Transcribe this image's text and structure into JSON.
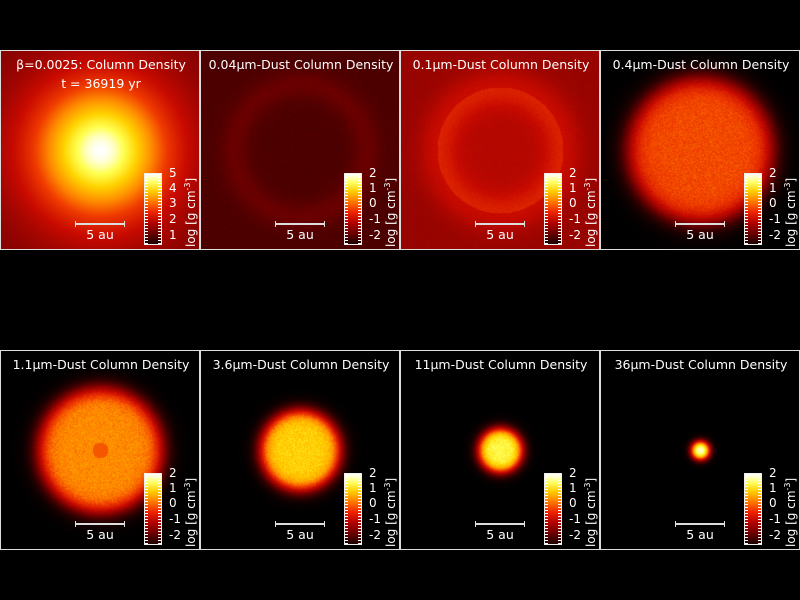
{
  "panels": [
    {
      "title": "β=0.0025: Column Density",
      "subtitle": "t = 36919 yr",
      "scale_label": "5 au",
      "ticks": [
        "5",
        "4",
        "3",
        "2",
        "1"
      ],
      "unit_prefix": "log [g cm",
      "unit_exp": "-3",
      "unit_suffix": "]"
    },
    {
      "title": "0.04μm-Dust Column Density",
      "scale_label": "5 au",
      "ticks": [
        "2",
        "1",
        "0",
        "-1",
        "-2"
      ],
      "unit_prefix": "log [g cm",
      "unit_exp": "-3",
      "unit_suffix": "]"
    },
    {
      "title": "0.1μm-Dust Column Density",
      "scale_label": "5 au",
      "ticks": [
        "2",
        "1",
        "0",
        "-1",
        "-2"
      ],
      "unit_prefix": "log [g cm",
      "unit_exp": "-3",
      "unit_suffix": "]"
    },
    {
      "title": "0.4μm-Dust Column Density",
      "scale_label": "5 au",
      "ticks": [
        "2",
        "1",
        "0",
        "-1",
        "-2"
      ],
      "unit_prefix": "log [g cm",
      "unit_exp": "-3",
      "unit_suffix": "]"
    },
    {
      "title": "1.1μm-Dust Column Density",
      "scale_label": "5 au",
      "ticks": [
        "2",
        "1",
        "0",
        "-1",
        "-2"
      ],
      "unit_prefix": "log [g cm",
      "unit_exp": "-3",
      "unit_suffix": "]"
    },
    {
      "title": "3.6μm-Dust Column Density",
      "scale_label": "5 au",
      "ticks": [
        "2",
        "1",
        "0",
        "-1",
        "-2"
      ],
      "unit_prefix": "log [g cm",
      "unit_exp": "-3",
      "unit_suffix": "]"
    },
    {
      "title": "11μm-Dust Column Density",
      "scale_label": "5 au",
      "ticks": [
        "2",
        "1",
        "0",
        "-1",
        "-2"
      ],
      "unit_prefix": "log [g cm",
      "unit_exp": "-3",
      "unit_suffix": "]"
    },
    {
      "title": "36μm-Dust Column Density",
      "scale_label": "5 au",
      "ticks": [
        "2",
        "1",
        "0",
        "-1",
        "-2"
      ],
      "unit_prefix": "log [g cm",
      "unit_exp": "-3",
      "unit_suffix": "]"
    }
  ]
}
